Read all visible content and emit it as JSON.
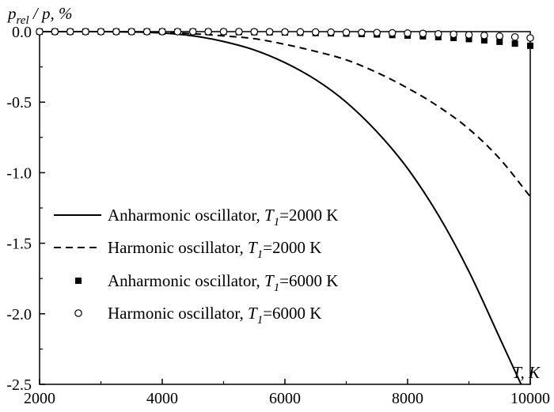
{
  "chart_data": {
    "type": "line",
    "title": "",
    "ylabel": {
      "main": "p",
      "sub": "rel",
      "rest": " / p, %"
    },
    "xlabel": "T, K",
    "xlim": [
      2000,
      10000
    ],
    "ylim": [
      -2.5,
      0.0
    ],
    "xticks": [
      2000,
      4000,
      6000,
      8000,
      10000
    ],
    "yticks": [
      0.0,
      -0.5,
      -1.0,
      -1.5,
      -2.0,
      -2.5
    ],
    "ytick_labels": [
      "0.0",
      "-0.5",
      "-1.0",
      "-1.5",
      "-2.0",
      "-2.5"
    ],
    "grid": false,
    "legend_position": "lower-left",
    "series": [
      {
        "id": "anh2000",
        "legend_prefix": "Anharmonic oscillator, ",
        "legend_var": "T",
        "legend_sub": "1",
        "legend_suffix": "=2000 K",
        "style": "solid",
        "x": [
          2000,
          2500,
          3000,
          3500,
          4000,
          4500,
          5000,
          5500,
          6000,
          6500,
          7000,
          7500,
          8000,
          8500,
          9000,
          9500,
          9850
        ],
        "y": [
          0.0,
          0.0,
          0.0,
          -0.002,
          -0.01,
          -0.03,
          -0.07,
          -0.13,
          -0.22,
          -0.34,
          -0.5,
          -0.71,
          -0.97,
          -1.3,
          -1.7,
          -2.17,
          -2.5
        ]
      },
      {
        "id": "harm2000",
        "legend_prefix": "Harmonic oscillator, ",
        "legend_var": "T",
        "legend_sub": "1",
        "legend_suffix": "=2000 K",
        "style": "dashed",
        "x": [
          2000,
          3000,
          4000,
          4500,
          5000,
          5500,
          6000,
          6500,
          7000,
          7500,
          8000,
          8500,
          9000,
          9500,
          10000
        ],
        "y": [
          0.0,
          0.0,
          -0.005,
          -0.015,
          -0.03,
          -0.05,
          -0.09,
          -0.14,
          -0.2,
          -0.29,
          -0.4,
          -0.53,
          -0.69,
          -0.9,
          -1.17
        ]
      },
      {
        "id": "anh6000",
        "legend_prefix": "Anharmonic oscillator, ",
        "legend_var": "T",
        "legend_sub": "1",
        "legend_suffix": "=6000 K",
        "style": "filled-square",
        "x": [
          2000,
          2250,
          2500,
          2750,
          3000,
          3250,
          3500,
          3750,
          4000,
          4250,
          4500,
          4750,
          5000,
          5250,
          5500,
          5750,
          6000,
          6250,
          6500,
          6750,
          7000,
          7250,
          7500,
          7750,
          8000,
          8250,
          8500,
          8750,
          9000,
          9250,
          9500,
          9750,
          10000
        ],
        "y": [
          0,
          0,
          0,
          0,
          0,
          0,
          0,
          0,
          0,
          0,
          0,
          -0.001,
          -0.002,
          -0.003,
          -0.004,
          -0.005,
          -0.006,
          -0.008,
          -0.01,
          -0.012,
          -0.014,
          -0.017,
          -0.02,
          -0.024,
          -0.028,
          -0.033,
          -0.039,
          -0.045,
          -0.053,
          -0.062,
          -0.072,
          -0.085,
          -0.1
        ]
      },
      {
        "id": "harm6000",
        "legend_prefix": "Harmonic oscillator, ",
        "legend_var": "T",
        "legend_sub": "1",
        "legend_suffix": "=6000 K",
        "style": "open-circle",
        "x": [
          2000,
          2250,
          2500,
          2750,
          3000,
          3250,
          3500,
          3750,
          4000,
          4250,
          4500,
          4750,
          5000,
          5250,
          5500,
          5750,
          6000,
          6250,
          6500,
          6750,
          7000,
          7250,
          7500,
          7750,
          8000,
          8250,
          8500,
          8750,
          9000,
          9250,
          9500,
          9750,
          10000
        ],
        "y": [
          0,
          0,
          0,
          0,
          0,
          0,
          0,
          0,
          0,
          0,
          0,
          0,
          0,
          0,
          -0.001,
          -0.001,
          -0.002,
          -0.002,
          -0.003,
          -0.004,
          -0.005,
          -0.006,
          -0.007,
          -0.009,
          -0.011,
          -0.013,
          -0.016,
          -0.019,
          -0.023,
          -0.027,
          -0.032,
          -0.038,
          -0.045
        ]
      }
    ]
  }
}
